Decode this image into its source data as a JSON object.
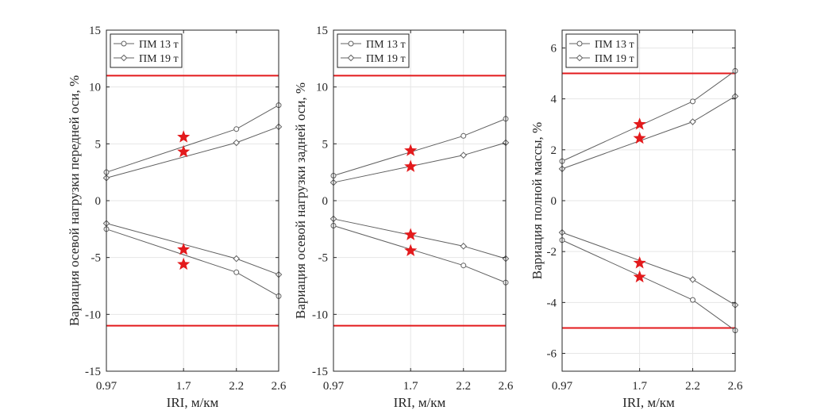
{
  "chart_data": [
    {
      "type": "line",
      "xlabel": "IRI, м/км",
      "ylabel": "Вариация осевой нагрузки передней оси, %",
      "x": [
        0.97,
        2.2,
        2.6
      ],
      "x_ticks": [
        0.97,
        1.7,
        2.2,
        2.6
      ],
      "x_tick_labels": [
        "0.97",
        "1.7",
        "2.2",
        "2.6"
      ],
      "xlim": [
        0.97,
        2.6
      ],
      "ylim": [
        -15,
        15
      ],
      "y_ticks": [
        -15,
        -10,
        -5,
        0,
        5,
        10,
        15
      ],
      "y_tick_labels": [
        "-15",
        "-10",
        "-5",
        "0",
        "5",
        "10",
        "15"
      ],
      "grid": true,
      "legend_position": "top-left",
      "series": [
        {
          "name": "ПМ 13 т",
          "marker": "circle",
          "upper": [
            2.5,
            6.3,
            8.4
          ],
          "lower": [
            -2.5,
            -6.3,
            -8.4
          ]
        },
        {
          "name": "ПМ 19 т",
          "marker": "diamond",
          "upper": [
            2.0,
            5.1,
            6.5
          ],
          "lower": [
            -2.0,
            -5.1,
            -6.5
          ]
        }
      ],
      "star_points": [
        {
          "x": 1.7,
          "y": 5.6
        },
        {
          "x": 1.7,
          "y": 4.3
        },
        {
          "x": 1.7,
          "y": -4.3
        },
        {
          "x": 1.7,
          "y": -5.6
        }
      ],
      "limit_lines": [
        11,
        -11
      ],
      "color_series": "#606060",
      "color_limits": "#e31a1c",
      "color_stars": "#e31a1c"
    },
    {
      "type": "line",
      "xlabel": "IRI, м/км",
      "ylabel": "Вариация осевой нагрузки задней оси, %",
      "x": [
        0.97,
        2.2,
        2.6
      ],
      "x_ticks": [
        0.97,
        1.7,
        2.2,
        2.6
      ],
      "x_tick_labels": [
        "0.97",
        "1.7",
        "2.2",
        "2.6"
      ],
      "xlim": [
        0.97,
        2.6
      ],
      "ylim": [
        -15,
        15
      ],
      "y_ticks": [
        -15,
        -10,
        -5,
        0,
        5,
        10,
        15
      ],
      "y_tick_labels": [
        "-15",
        "-10",
        "-5",
        "0",
        "5",
        "10",
        "15"
      ],
      "grid": true,
      "legend_position": "top-left",
      "series": [
        {
          "name": "ПМ 13 т",
          "marker": "circle",
          "upper": [
            2.2,
            5.7,
            7.2
          ],
          "lower": [
            -2.2,
            -5.7,
            -7.2
          ]
        },
        {
          "name": "ПМ 19 т",
          "marker": "diamond",
          "upper": [
            1.6,
            4.0,
            5.1
          ],
          "lower": [
            -1.6,
            -4.0,
            -5.1
          ]
        }
      ],
      "star_points": [
        {
          "x": 1.7,
          "y": 4.4
        },
        {
          "x": 1.7,
          "y": 3.0
        },
        {
          "x": 1.7,
          "y": -3.0
        },
        {
          "x": 1.7,
          "y": -4.4
        }
      ],
      "limit_lines": [
        11,
        -11
      ],
      "color_series": "#606060",
      "color_limits": "#e31a1c",
      "color_stars": "#e31a1c"
    },
    {
      "type": "line",
      "xlabel": "IRI, м/км",
      "ylabel": "Вариация полной массы, %",
      "x": [
        0.97,
        2.2,
        2.6
      ],
      "x_ticks": [
        0.97,
        1.7,
        2.2,
        2.6
      ],
      "x_tick_labels": [
        "0.97",
        "1.7",
        "2.2",
        "2.6"
      ],
      "xlim": [
        0.97,
        2.6
      ],
      "ylim": [
        -6.7,
        6.7
      ],
      "y_ticks": [
        -6,
        -4,
        -2,
        0,
        2,
        4,
        6
      ],
      "y_tick_labels": [
        "-6",
        "-4",
        "-2",
        "0",
        "2",
        "4",
        "6"
      ],
      "grid": true,
      "legend_position": "top-left",
      "series": [
        {
          "name": "ПМ 13 т",
          "marker": "circle",
          "upper": [
            1.55,
            3.9,
            5.1
          ],
          "lower": [
            -1.55,
            -3.9,
            -5.1
          ]
        },
        {
          "name": "ПМ 19 т",
          "marker": "diamond",
          "upper": [
            1.25,
            3.1,
            4.1
          ],
          "lower": [
            -1.25,
            -3.1,
            -4.1
          ]
        }
      ],
      "star_points": [
        {
          "x": 1.7,
          "y": 3.0
        },
        {
          "x": 1.7,
          "y": 2.45
        },
        {
          "x": 1.7,
          "y": -2.45
        },
        {
          "x": 1.7,
          "y": -3.0
        }
      ],
      "limit_lines": [
        5,
        -5
      ],
      "color_series": "#606060",
      "color_limits": "#e31a1c",
      "color_stars": "#e31a1c"
    }
  ]
}
